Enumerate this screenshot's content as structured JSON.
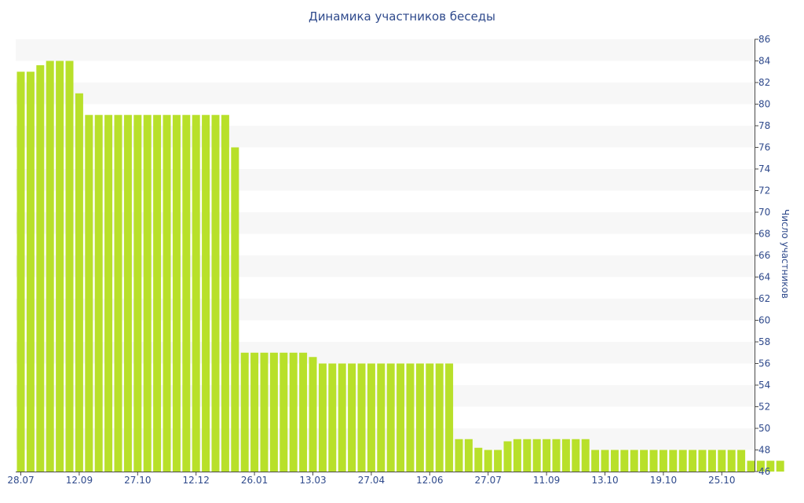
{
  "colors": {
    "bar": "#b8e02a",
    "band": "#f7f7f7",
    "axis_text": "#2f4a8c",
    "axis_line": "#4a4a4a"
  },
  "chart_data": {
    "type": "bar",
    "title": "Динамика участников беседы",
    "ylabel": "Число участников",
    "xlabel": "",
    "ylim": [
      46,
      86
    ],
    "y_ticks": [
      46,
      48,
      50,
      52,
      54,
      56,
      58,
      60,
      62,
      64,
      66,
      68,
      70,
      72,
      74,
      76,
      78,
      80,
      82,
      84,
      86
    ],
    "y_axis_side": "right",
    "grid": "alternating horizontal bands",
    "x_tick_labels": [
      {
        "label": "28.07",
        "index": 0
      },
      {
        "label": "12.09",
        "index": 6
      },
      {
        "label": "27.10",
        "index": 12
      },
      {
        "label": "12.12",
        "index": 18
      },
      {
        "label": "26.01",
        "index": 24
      },
      {
        "label": "13.03",
        "index": 30
      },
      {
        "label": "27.04",
        "index": 36
      },
      {
        "label": "12.06",
        "index": 42
      },
      {
        "label": "27.07",
        "index": 48
      },
      {
        "label": "11.09",
        "index": 54
      },
      {
        "label": "13.10",
        "index": 60
      },
      {
        "label": "19.10",
        "index": 66
      },
      {
        "label": "25.10",
        "index": 72
      }
    ],
    "values": [
      83,
      83,
      83.6,
      84,
      84,
      84,
      81,
      79,
      79,
      79,
      79,
      79,
      79,
      79,
      79,
      79,
      79,
      79,
      79,
      79,
      79,
      79,
      76,
      57,
      57,
      57,
      57,
      57,
      57,
      57,
      56.6,
      56,
      56,
      56,
      56,
      56,
      56,
      56,
      56,
      56,
      56,
      56,
      56,
      56,
      56,
      49,
      49,
      48.2,
      48,
      48,
      48.8,
      49,
      49,
      49,
      49,
      49,
      49,
      49,
      49,
      48,
      48,
      48,
      48,
      48,
      48,
      48,
      48,
      48,
      48,
      48,
      48,
      48,
      48,
      48,
      48,
      47,
      47,
      47,
      47
    ]
  }
}
